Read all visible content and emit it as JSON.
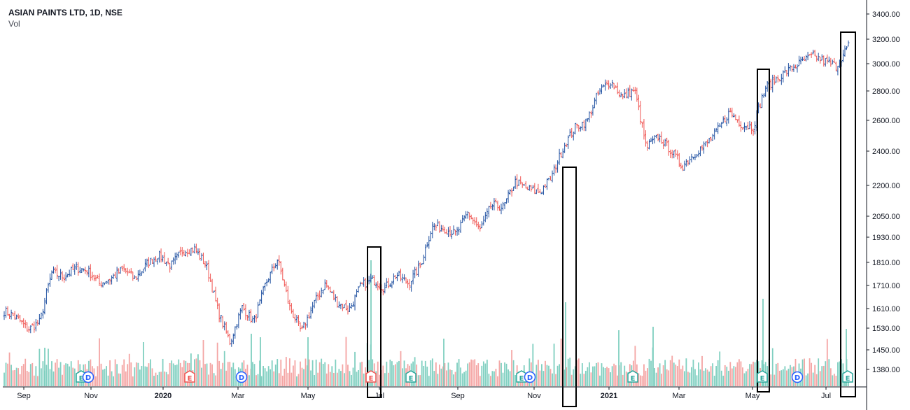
{
  "legend": {
    "title": "ASIAN PAINTS LTD, 1D, NSE",
    "volume": "Vol"
  },
  "colors": {
    "up": "#1e4fa0",
    "down": "#ef5350",
    "vol_up": "#7fcfc0",
    "vol_down": "#f4a4a3",
    "earnings": "#26a69a",
    "earnings_neg": "#ef5350",
    "dividend": "#2962ff",
    "box": "#000000"
  },
  "chart_data": {
    "type": "ohlc",
    "title": "ASIAN PAINTS LTD, 1D, NSE",
    "y_axis": {
      "scale": "log",
      "ticks": [
        "3400.00",
        "3200.00",
        "3000.00",
        "2800.00",
        "2600.00",
        "2400.00",
        "2200.00",
        "2050.00",
        "1930.00",
        "1810.00",
        "1710.00",
        "1610.00",
        "1530.00",
        "1450.00",
        "1380.00"
      ]
    },
    "x_axis": {
      "ticks": [
        {
          "label": "Sep",
          "bold": false
        },
        {
          "label": "Nov",
          "bold": false
        },
        {
          "label": "2020",
          "bold": true
        },
        {
          "label": "Mar",
          "bold": false
        },
        {
          "label": "May",
          "bold": false
        },
        {
          "label": "Jul",
          "bold": false
        },
        {
          "label": "Sep",
          "bold": false
        },
        {
          "label": "Nov",
          "bold": false
        },
        {
          "label": "2021",
          "bold": true
        },
        {
          "label": "Mar",
          "bold": false
        },
        {
          "label": "May",
          "bold": false
        },
        {
          "label": "Jul",
          "bold": false
        }
      ]
    },
    "price_path": [
      {
        "m": "Aug 2019",
        "p": 1605
      },
      {
        "m": "Sep 2019",
        "p": 1580
      },
      {
        "m": "Sep 2019",
        "p": 1530
      },
      {
        "m": "Sep 2019",
        "p": 1560
      },
      {
        "m": "Sep 2019",
        "p": 1770
      },
      {
        "m": "Oct 2019",
        "p": 1750
      },
      {
        "m": "Oct 2019",
        "p": 1790
      },
      {
        "m": "Nov 2019",
        "p": 1780
      },
      {
        "m": "Dec 2019",
        "p": 1720
      },
      {
        "m": "Dec 2019",
        "p": 1745
      },
      {
        "m": "Jan 2020",
        "p": 1785
      },
      {
        "m": "Jan 2020",
        "p": 1740
      },
      {
        "m": "Jan 2020",
        "p": 1810
      },
      {
        "m": "Feb 2020",
        "p": 1850
      },
      {
        "m": "Feb 2020",
        "p": 1800
      },
      {
        "m": "Feb 2020",
        "p": 1870
      },
      {
        "m": "Mar 2020",
        "p": 1880
      },
      {
        "m": "Mar 2020",
        "p": 1800
      },
      {
        "m": "Mar 2020",
        "p": 1600
      },
      {
        "m": "Mar 2020",
        "p": 1480
      },
      {
        "m": "Apr 2020",
        "p": 1620
      },
      {
        "m": "Apr 2020",
        "p": 1560
      },
      {
        "m": "Apr 2020",
        "p": 1720
      },
      {
        "m": "Apr 2020",
        "p": 1830
      },
      {
        "m": "May 2020",
        "p": 1620
      },
      {
        "m": "May 2020",
        "p": 1520
      },
      {
        "m": "Jun 2020",
        "p": 1630
      },
      {
        "m": "Jun 2020",
        "p": 1720
      },
      {
        "m": "Jun 2020",
        "p": 1640
      },
      {
        "m": "Jun 2020",
        "p": 1610
      },
      {
        "m": "Jul 2020",
        "p": 1710
      },
      {
        "m": "Jul 2020",
        "p": 1740
      },
      {
        "m": "Jul 2020",
        "p": 1700
      },
      {
        "m": "Aug 2020",
        "p": 1760
      },
      {
        "m": "Aug 2020",
        "p": 1720
      },
      {
        "m": "Aug 2020",
        "p": 1800
      },
      {
        "m": "Aug 2020",
        "p": 1990
      },
      {
        "m": "Sep 2020",
        "p": 1980
      },
      {
        "m": "Sep 2020",
        "p": 1950
      },
      {
        "m": "Sep 2020",
        "p": 2060
      },
      {
        "m": "Oct 2020",
        "p": 1970
      },
      {
        "m": "Oct 2020",
        "p": 2100
      },
      {
        "m": "Oct 2020",
        "p": 2090
      },
      {
        "m": "Nov 2020",
        "p": 2230
      },
      {
        "m": "Nov 2020",
        "p": 2190
      },
      {
        "m": "Nov 2020",
        "p": 2170
      },
      {
        "m": "Nov 2020",
        "p": 2250
      },
      {
        "m": "Dec 2020",
        "p": 2430
      },
      {
        "m": "Dec 2020",
        "p": 2560
      },
      {
        "m": "Dec 2020",
        "p": 2600
      },
      {
        "m": "Jan 2021",
        "p": 2800
      },
      {
        "m": "Jan 2021",
        "p": 2880
      },
      {
        "m": "Jan 2021",
        "p": 2760
      },
      {
        "m": "Jan 2021",
        "p": 2820
      },
      {
        "m": "Feb 2021",
        "p": 2430
      },
      {
        "m": "Feb 2021",
        "p": 2500
      },
      {
        "m": "Feb 2021",
        "p": 2420
      },
      {
        "m": "Mar 2021",
        "p": 2320
      },
      {
        "m": "Mar 2021",
        "p": 2390
      },
      {
        "m": "Mar 2021",
        "p": 2450
      },
      {
        "m": "Apr 2021",
        "p": 2540
      },
      {
        "m": "Apr 2021",
        "p": 2660
      },
      {
        "m": "Apr 2021",
        "p": 2580
      },
      {
        "m": "May 2021",
        "p": 2560
      },
      {
        "m": "May 2021",
        "p": 2830
      },
      {
        "m": "May 2021",
        "p": 2900
      },
      {
        "m": "Jun 2021",
        "p": 2960
      },
      {
        "m": "Jun 2021",
        "p": 3020
      },
      {
        "m": "Jun 2021",
        "p": 3070
      },
      {
        "m": "Jul 2021",
        "p": 3030
      },
      {
        "m": "Jul 2021",
        "p": 2990
      },
      {
        "m": "Jul 2021",
        "p": 3150
      }
    ],
    "events": [
      {
        "type": "E",
        "sentiment": "positive"
      },
      {
        "type": "D"
      },
      {
        "type": "E",
        "sentiment": "negative"
      },
      {
        "type": "D"
      },
      {
        "type": "E",
        "sentiment": "negative"
      },
      {
        "type": "E",
        "sentiment": "positive"
      },
      {
        "type": "E",
        "sentiment": "positive"
      },
      {
        "type": "D"
      },
      {
        "type": "E",
        "sentiment": "positive"
      },
      {
        "type": "E",
        "sentiment": "positive"
      },
      {
        "type": "D"
      },
      {
        "type": "E",
        "sentiment": "positive"
      }
    ],
    "highlight_boxes": [
      "Jul 2020",
      "Dec 2020",
      "May 2021",
      "Jul 2021"
    ],
    "grid": false,
    "legend_position": "top-left"
  }
}
